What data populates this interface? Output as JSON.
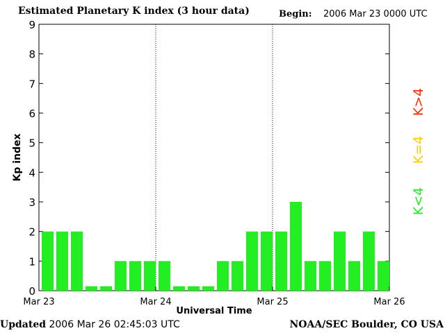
{
  "header": {
    "title": "Estimated Planetary K index (3 hour data)",
    "begin_label": "Begin:",
    "begin_value": "2006 Mar 23 0000 UTC"
  },
  "footer": {
    "updated_label": "Updated",
    "updated_value": "2006 Mar 26 02:45:03 UTC",
    "credit": "NOAA/SEC Boulder, CO USA"
  },
  "legend": {
    "greater": {
      "label": "K>4",
      "color": "#ff2a00"
    },
    "equal": {
      "label": "K=4",
      "color": "#ffcc00"
    },
    "less": {
      "label": "K<4",
      "color": "#22ee22"
    }
  },
  "chart_data": {
    "type": "bar",
    "title": "Estimated Planetary K index (3 hour data)",
    "xlabel": "Universal Time",
    "ylabel": "Kp index",
    "ylim": [
      0,
      9
    ],
    "yticks": [
      "0",
      "1",
      "2",
      "3",
      "4",
      "5",
      "6",
      "7",
      "8",
      "9"
    ],
    "xticks": [
      "Mar 23",
      "Mar 24",
      "Mar 25",
      "Mar 26"
    ],
    "interval_hours": 3,
    "values": [
      2,
      2,
      2,
      0,
      0,
      1,
      1,
      1,
      1,
      0,
      0,
      0,
      1,
      1,
      2,
      2,
      2,
      3,
      1,
      1,
      2,
      1,
      2,
      1
    ],
    "bar_color": "#22ee22"
  }
}
